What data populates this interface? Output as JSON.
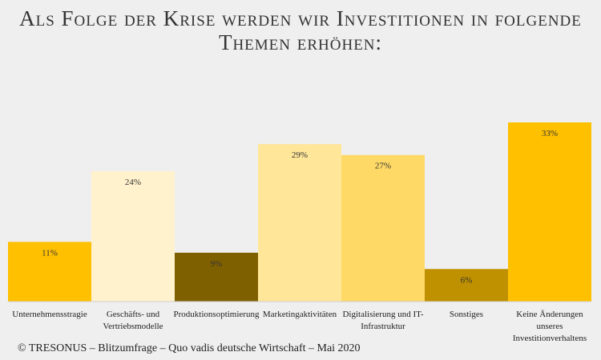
{
  "title": "Als Folge der Krise werden wir Investitionen in folgende Themen erhöhen:",
  "footer": "© TRESONUS – Blitzumfrage – Quo vadis deutsche Wirtschaft – Mai 2020",
  "chart_data": {
    "type": "bar",
    "categories": [
      "Unternehmensstragie",
      "Geschäfts- und Vertriebsmodelle",
      "Produktionsoptimierung",
      "Marketingaktivitäten",
      "Digitalisierung und IT-Infrastruktur",
      "Sonstiges",
      "Keine Änderungen unseres Investitionverhaltens"
    ],
    "category_lines": [
      [
        "Unternehmensstragie"
      ],
      [
        "Geschäfts- und",
        "Vertriebsmodelle"
      ],
      [
        "Produktionsoptimierung"
      ],
      [
        "Marketingaktivitäten"
      ],
      [
        "Digitalisierung und IT-",
        "Infrastruktur"
      ],
      [
        "Sonstiges"
      ],
      [
        "Keine Änderungen",
        "unseres",
        "Investitionverhaltens"
      ]
    ],
    "values": [
      11,
      24,
      9,
      29,
      27,
      6,
      33
    ],
    "value_labels": [
      "11%",
      "24%",
      "9%",
      "29%",
      "27%",
      "6%",
      "33%"
    ],
    "colors": [
      "#ffc000",
      "#fff2cc",
      "#7f6000",
      "#ffe699",
      "#ffd966",
      "#bf9000",
      "#ffc000"
    ],
    "ylim": [
      0,
      33
    ],
    "grid": false,
    "legend": "none"
  }
}
